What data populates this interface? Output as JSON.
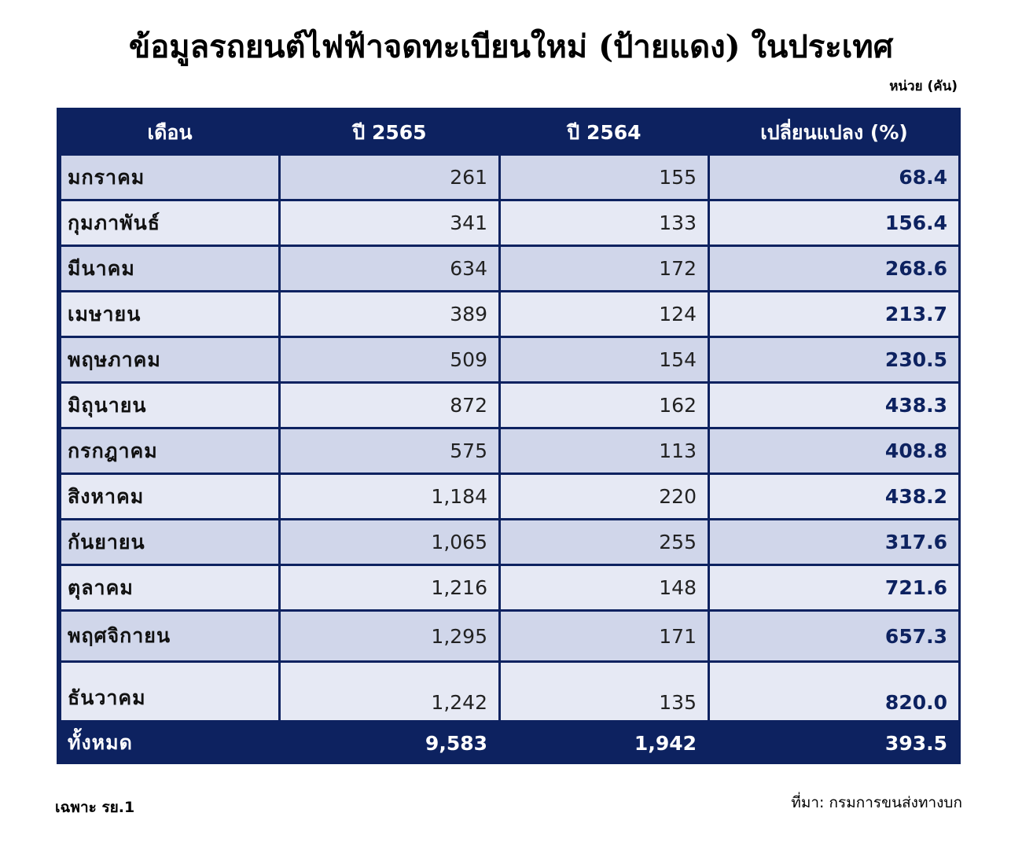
{
  "title": "ข้อมูลรถยนต์ไฟฟ้าจดทะเบียนใหม่ (ป้ายแดง) ในประเทศ",
  "unit": "หน่วย (คัน)",
  "table": {
    "headers": [
      "เดือน",
      "ปี 2565",
      "ปี 2564",
      "เปลี่ยนแปลง (%)"
    ],
    "rows": [
      {
        "month": "มกราคม",
        "y2565": "261",
        "y2564": "155",
        "change": "68.4"
      },
      {
        "month": "กุมภาพันธ์",
        "y2565": "341",
        "y2564": "133",
        "change": "156.4"
      },
      {
        "month": "มีนาคม",
        "y2565": "634",
        "y2564": "172",
        "change": "268.6"
      },
      {
        "month": "เมษายน",
        "y2565": "389",
        "y2564": "124",
        "change": "213.7"
      },
      {
        "month": "พฤษภาคม",
        "y2565": "509",
        "y2564": "154",
        "change": "230.5"
      },
      {
        "month": "มิถุนายน",
        "y2565": "872",
        "y2564": "162",
        "change": "438.3"
      },
      {
        "month": "กรกฎาคม",
        "y2565": "575",
        "y2564": "113",
        "change": "408.8"
      },
      {
        "month": "สิงหาคม",
        "y2565": "1,184",
        "y2564": "220",
        "change": "438.2"
      },
      {
        "month": "กันยายน",
        "y2565": "1,065",
        "y2564": "255",
        "change": "317.6"
      },
      {
        "month": "ตุลาคม",
        "y2565": "1,216",
        "y2564": "148",
        "change": "721.6"
      },
      {
        "month": "พฤศจิกายน",
        "y2565": "1,295",
        "y2564": "171",
        "change": "657.3"
      },
      {
        "month": "ธันวาคม",
        "y2565": "1,242",
        "y2564": "135",
        "change": "820.0"
      }
    ],
    "total": {
      "label": "ทั้งหมด",
      "y2565": "9,583",
      "y2564": "1,942",
      "change": "393.5"
    }
  },
  "footnote": "เฉพาะ รย.1",
  "source": "ที่มา: กรมการขนส่งทางบก",
  "colors": {
    "header_bg": "#0d2260",
    "row_dark": "#d0d6ea",
    "row_light": "#e6e9f4",
    "change_text": "#0d2260"
  }
}
